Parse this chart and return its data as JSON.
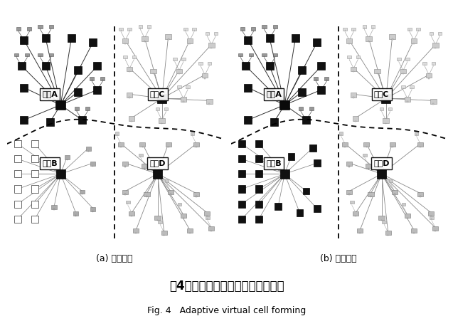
{
  "title_jp": "第4図　親機停止時の適応セル変更",
  "title_en": "Fig. 4   Adaptive virtual cell forming",
  "caption_a": "(a) 従来方式",
  "caption_b": "(b) 開発方式",
  "label_A": "親機A",
  "label_B": "親機B",
  "label_C": "親機C",
  "label_D": "親機D",
  "bg_color": "#ffffff",
  "panel_bg": "#b8b8b8",
  "title_fontsize": 12,
  "caption_fontsize": 9,
  "subtitle_fontsize": 9,
  "label_fontsize": 8
}
